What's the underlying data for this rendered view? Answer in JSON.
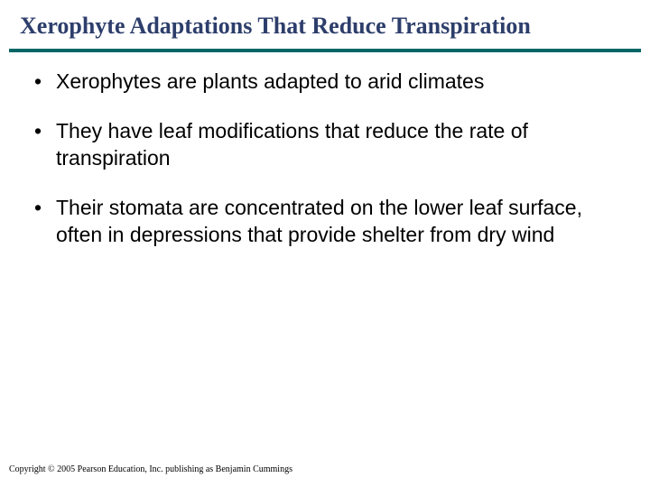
{
  "title": "Xerophyte Adaptations That Reduce Transpiration",
  "title_color": "#2d3e6b",
  "rule_color": "#006666",
  "background_color": "#ffffff",
  "bullets": [
    "Xerophytes are plants adapted to arid climates",
    "They have leaf modifications that reduce the rate of transpiration",
    "Their stomata are concentrated on the lower leaf surface, often in depressions that provide shelter from dry wind"
  ],
  "copyright": "Copyright © 2005 Pearson Education, Inc. publishing as Benjamin Cummings"
}
